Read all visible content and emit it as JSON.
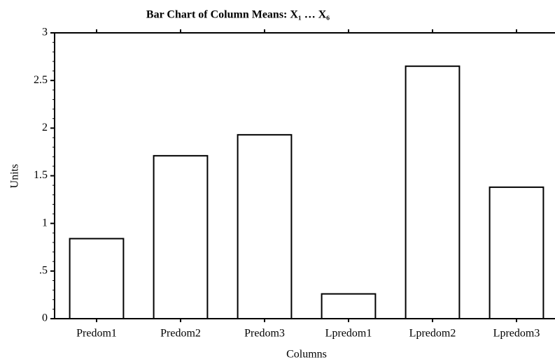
{
  "chart_data": {
    "type": "bar",
    "title": "Bar Chart of Column Means: X₁ … X₆",
    "x_label": "Columns",
    "y_label": "Units",
    "categories": [
      "Predom1",
      "Predom2",
      "Predom3",
      "Lpredom1",
      "Lpredom2",
      "Lpredom3"
    ],
    "values": [
      0.84,
      1.71,
      1.93,
      0.26,
      2.65,
      1.38
    ],
    "color": "#ffffff",
    "ylim": [
      0,
      3
    ],
    "yticks": [
      0,
      {
        "value": 0.5,
        "label": ".5"
      },
      1,
      1.5,
      2,
      2.5,
      3
    ]
  }
}
